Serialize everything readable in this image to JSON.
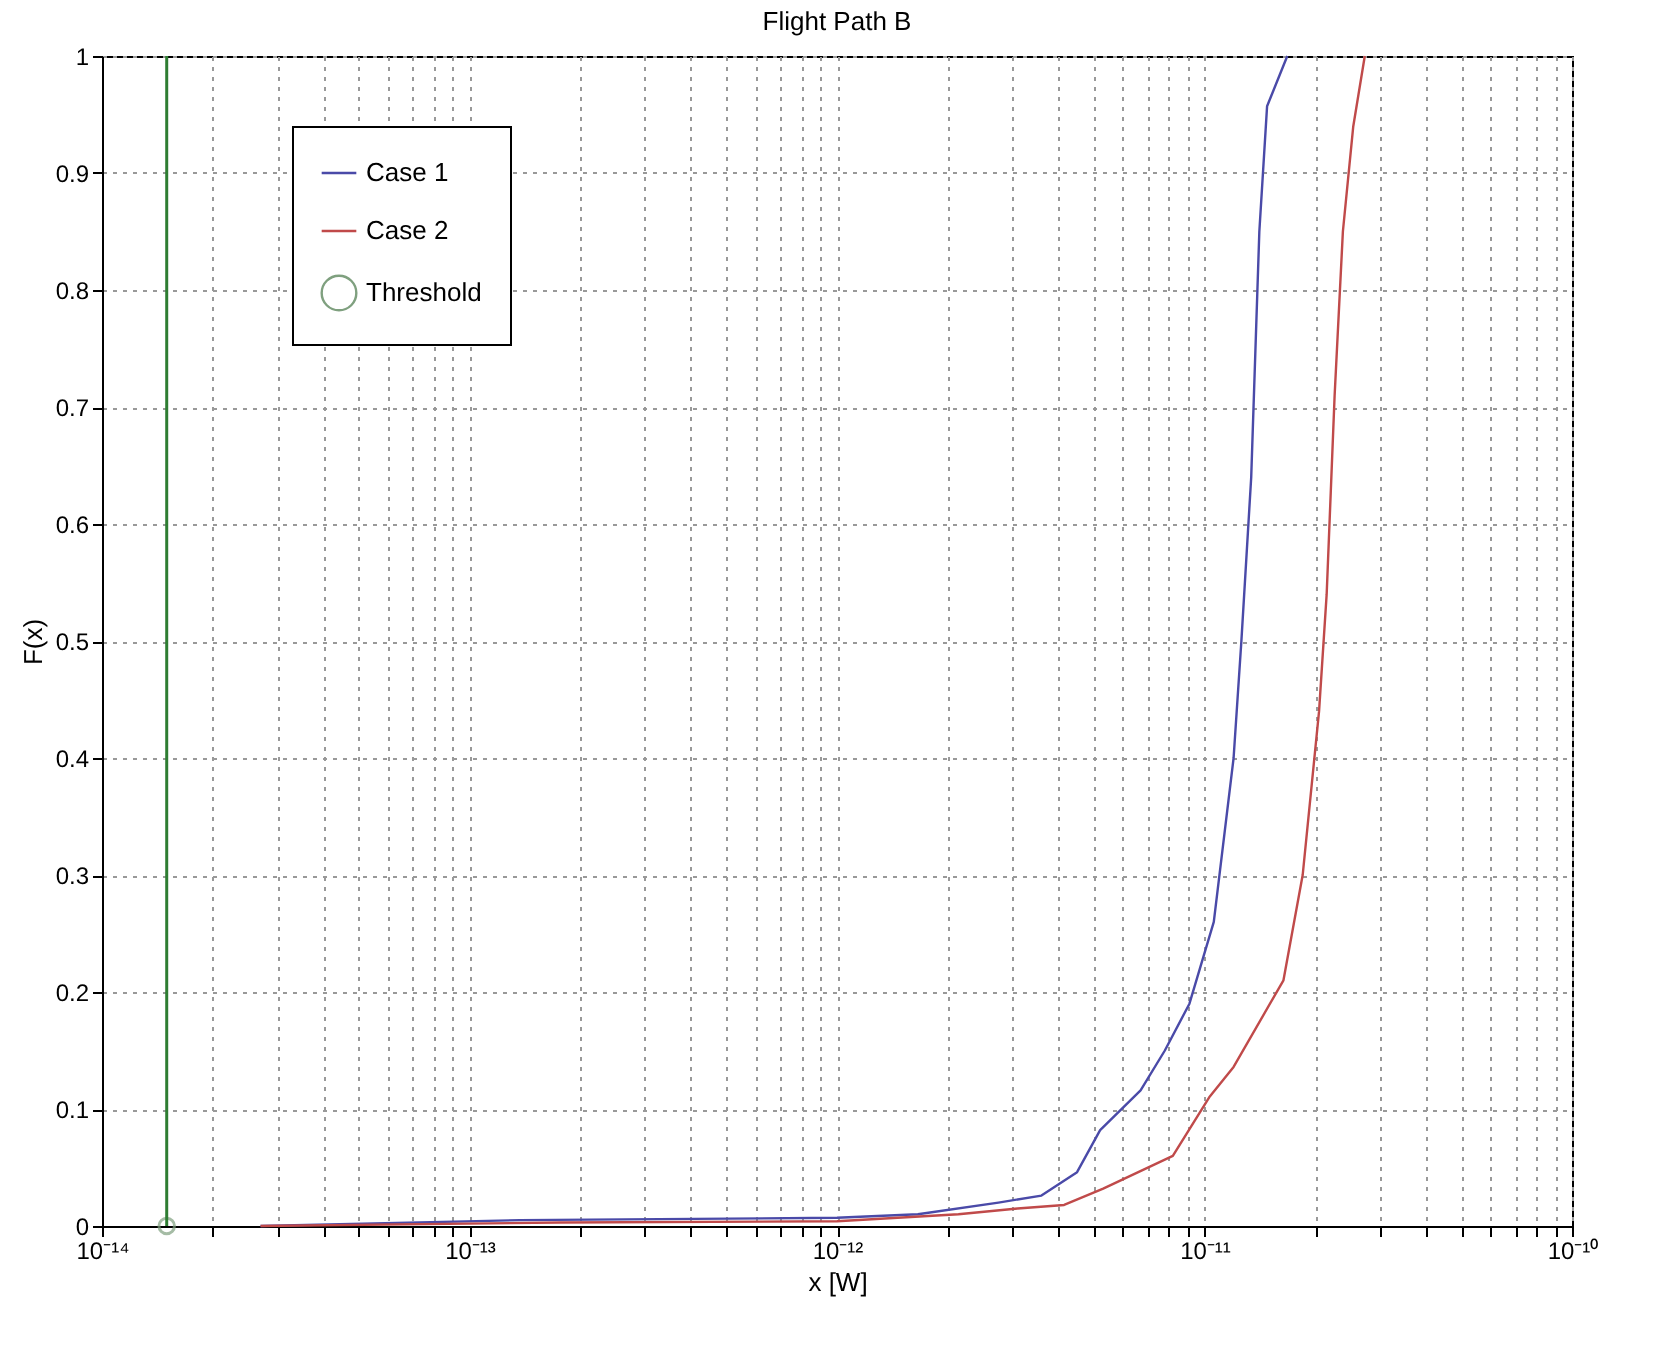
{
  "chart_data": {
    "type": "line",
    "title": "Flight Path B",
    "xlabel": "x  [W]",
    "ylabel": "F(x)",
    "log": "x",
    "xlim": [
      1e-14,
      1e-10
    ],
    "xticks": [
      {
        "value": 1e-14,
        "label": "10⁻¹⁴"
      },
      {
        "value": 2e-14,
        "label": null
      },
      {
        "value": 3e-14,
        "label": null
      },
      {
        "value": 4e-14,
        "label": null
      },
      {
        "value": 5e-14,
        "label": null
      },
      {
        "value": 6e-14,
        "label": null
      },
      {
        "value": 7e-14,
        "label": null
      },
      {
        "value": 8e-14,
        "label": null
      },
      {
        "value": 9e-14,
        "label": null
      },
      {
        "value": 1e-13,
        "label": "10⁻¹³"
      },
      {
        "value": 2e-13,
        "label": null
      },
      {
        "value": 3e-13,
        "label": null
      },
      {
        "value": 4e-13,
        "label": null
      },
      {
        "value": 5e-13,
        "label": null
      },
      {
        "value": 6e-13,
        "label": null
      },
      {
        "value": 7e-13,
        "label": null
      },
      {
        "value": 8e-13,
        "label": null
      },
      {
        "value": 9e-13,
        "label": null
      },
      {
        "value": 1e-12,
        "label": "10⁻¹²"
      },
      {
        "value": 2e-12,
        "label": null
      },
      {
        "value": 3e-12,
        "label": null
      },
      {
        "value": 4e-12,
        "label": null
      },
      {
        "value": 5e-12,
        "label": null
      },
      {
        "value": 6e-12,
        "label": null
      },
      {
        "value": 7e-12,
        "label": null
      },
      {
        "value": 8e-12,
        "label": null
      },
      {
        "value": 9e-12,
        "label": null
      },
      {
        "value": 1e-11,
        "label": "10⁻¹¹"
      },
      {
        "value": 2e-11,
        "label": null
      },
      {
        "value": 3e-11,
        "label": null
      },
      {
        "value": 4e-11,
        "label": null
      },
      {
        "value": 5e-11,
        "label": null
      },
      {
        "value": 6e-11,
        "label": null
      },
      {
        "value": 7e-11,
        "label": null
      },
      {
        "value": 8e-11,
        "label": null
      },
      {
        "value": 9e-11,
        "label": null
      },
      {
        "value": 1e-10,
        "label": "10⁻¹⁰"
      }
    ],
    "ylim": [
      0,
      1
    ],
    "yticks": [
      0,
      0.1,
      0.2,
      0.3,
      0.4,
      0.5,
      0.6,
      0.7,
      0.8,
      0.9,
      1
    ],
    "grid": true,
    "legend": "top left",
    "series": [
      {
        "name": "Case 1",
        "color": "#4a4aa8",
        "x": [
          2.7e-14,
          1.37e-13,
          1e-12,
          1.66e-12,
          2.75e-12,
          3.6e-12,
          4.5e-12,
          5.2e-12,
          6.7e-12,
          7.8e-12,
          9.1e-12,
          1.06e-11,
          1.2e-11,
          1.26e-11,
          1.34e-11,
          1.41e-11,
          1.48e-11,
          1.68e-11
        ],
        "values": [
          0,
          0.005,
          0.007,
          0.01,
          0.02,
          0.026,
          0.046,
          0.082,
          0.116,
          0.15,
          0.19,
          0.26,
          0.4,
          0.5,
          0.64,
          0.85,
          0.957,
          1
        ]
      },
      {
        "name": "Case 2",
        "color": "#c04a4a",
        "x": [
          2.7e-14,
          1.77e-13,
          1e-12,
          2.14e-12,
          3.1e-12,
          4.15e-12,
          5.3e-12,
          8.2e-12,
          1.03e-11,
          1.2e-11,
          1.64e-11,
          1.85e-11,
          2.05e-11,
          2.15e-11,
          2.26e-11,
          2.38e-11,
          2.54e-11,
          2.73e-11
        ],
        "values": [
          0,
          0.003,
          0.004,
          0.01,
          0.015,
          0.018,
          0.032,
          0.06,
          0.11,
          0.136,
          0.21,
          0.3,
          0.44,
          0.54,
          0.71,
          0.85,
          0.94,
          1
        ]
      },
      {
        "name": "Threshold",
        "type": "scatter",
        "marker": "circle",
        "color": "#7fa07f",
        "x": [
          1.5e-14
        ],
        "values": [
          0
        ]
      }
    ],
    "ref_lines": [
      {
        "axis": "x",
        "value": 1.5e-14,
        "color": "#2e7d32"
      }
    ]
  }
}
